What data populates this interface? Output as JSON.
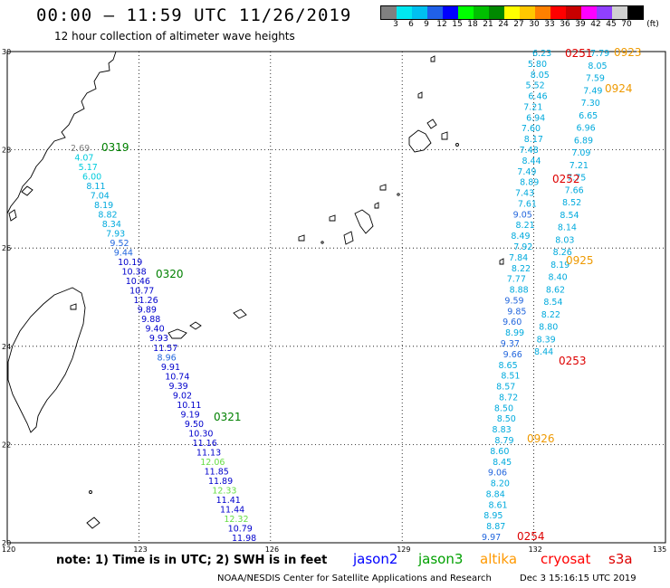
{
  "header": {
    "title": "00:00 – 11:59 UTC 11/26/2019",
    "subtitle": "12 hour collection of altimeter wave heights"
  },
  "color_scale": {
    "unit": "(ft)",
    "labels": [
      "3",
      "6",
      "9",
      "12",
      "15",
      "18",
      "21",
      "24",
      "27",
      "30",
      "33",
      "36",
      "39",
      "42",
      "45",
      "70"
    ],
    "colors": [
      "#808080",
      "#00e8f0",
      "#00c0f0",
      "#2060e8",
      "#0000ff",
      "#00ff00",
      "#00c000",
      "#008800",
      "#ffff00",
      "#ffc800",
      "#ff8000",
      "#ff0000",
      "#c80000",
      "#ff00ff",
      "#9040ff",
      "#d0d0d0",
      "#000000"
    ]
  },
  "map": {
    "lat_labels": [
      "30",
      "28",
      "26",
      "24",
      "22",
      "20"
    ],
    "lon_labels": [
      "120",
      "123",
      "126",
      "129",
      "132",
      "135"
    ]
  },
  "chart_data": {
    "type": "map",
    "tracks": [
      {
        "name": "jason3",
        "pass": "0319",
        "time_label": "0319",
        "label_color": "#008000",
        "points": [
          {
            "v": "2.69",
            "c": "#808080"
          },
          {
            "v": "4.07",
            "c": "#00ccdd"
          },
          {
            "v": "5.17",
            "c": "#00ccdd"
          },
          {
            "v": "6.00",
            "c": "#00ccdd"
          },
          {
            "v": "8.11",
            "c": "#00aadd"
          },
          {
            "v": "7.04",
            "c": "#00aadd"
          },
          {
            "v": "8.19",
            "c": "#00aadd"
          },
          {
            "v": "8.82",
            "c": "#00aadd"
          },
          {
            "v": "8.34",
            "c": "#00aadd"
          },
          {
            "v": "7.93",
            "c": "#00aadd"
          },
          {
            "v": "9.52",
            "c": "#2266dd"
          },
          {
            "v": "9.44",
            "c": "#2266dd"
          },
          {
            "v": "10.19",
            "c": "#0000cc"
          },
          {
            "v": "10.38",
            "c": "#0000cc"
          },
          {
            "v": "10.46",
            "c": "#0000cc"
          },
          {
            "v": "10.77",
            "c": "#0000cc"
          },
          {
            "v": "11.26",
            "c": "#0000cc"
          },
          {
            "v": "9.89",
            "c": "#0000cc"
          },
          {
            "v": "9.88",
            "c": "#0000cc"
          },
          {
            "v": "9.40",
            "c": "#0000cc"
          },
          {
            "v": "9.93",
            "c": "#0000cc"
          },
          {
            "v": "11.57",
            "c": "#0000cc"
          },
          {
            "v": "8.96",
            "c": "#2266dd"
          },
          {
            "v": "9.91",
            "c": "#0000cc"
          },
          {
            "v": "10.74",
            "c": "#0000cc"
          },
          {
            "v": "9.39",
            "c": "#0000cc"
          },
          {
            "v": "9.02",
            "c": "#0000cc"
          },
          {
            "v": "10.11",
            "c": "#0000cc"
          },
          {
            "v": "9.19",
            "c": "#0000cc"
          },
          {
            "v": "9.50",
            "c": "#0000cc"
          },
          {
            "v": "10.30",
            "c": "#0000cc"
          },
          {
            "v": "11.16",
            "c": "#0000cc"
          },
          {
            "v": "11.13",
            "c": "#0000cc"
          },
          {
            "v": "12.06",
            "c": "#66dd44"
          },
          {
            "v": "11.85",
            "c": "#0000cc"
          },
          {
            "v": "11.89",
            "c": "#0000cc"
          },
          {
            "v": "12.33",
            "c": "#66dd44"
          },
          {
            "v": "11.41",
            "c": "#0000cc"
          },
          {
            "v": "11.44",
            "c": "#0000cc"
          },
          {
            "v": "12.32",
            "c": "#66dd44"
          },
          {
            "v": "10.79",
            "c": "#0000cc"
          },
          {
            "v": "11.98",
            "c": "#0000cc"
          }
        ],
        "time_labels": [
          {
            "t": "0319"
          },
          {
            "t": "0320"
          },
          {
            "t": "0321"
          }
        ]
      },
      {
        "name": "altika",
        "pass": "0923",
        "points": [
          {
            "v": "6.23",
            "c": "#00aadd"
          },
          {
            "v": "5.80",
            "c": "#00aadd"
          },
          {
            "v": "8.05",
            "c": "#00aadd"
          },
          {
            "v": "5.52",
            "c": "#00aadd"
          },
          {
            "v": "6.46",
            "c": "#00aadd"
          },
          {
            "v": "7.21",
            "c": "#00aadd"
          },
          {
            "v": "6.94",
            "c": "#00aadd"
          },
          {
            "v": "7.60",
            "c": "#00aadd"
          },
          {
            "v": "8.17",
            "c": "#00aadd"
          },
          {
            "v": "7.48",
            "c": "#00aadd"
          },
          {
            "v": "8.44",
            "c": "#00aadd"
          },
          {
            "v": "7.49",
            "c": "#00aadd"
          },
          {
            "v": "8.89",
            "c": "#00aadd"
          },
          {
            "v": "7.43",
            "c": "#00aadd"
          },
          {
            "v": "7.61",
            "c": "#00aadd"
          },
          {
            "v": "9.05",
            "c": "#2266dd"
          },
          {
            "v": "8.21",
            "c": "#00aadd"
          },
          {
            "v": "8.49",
            "c": "#00aadd"
          },
          {
            "v": "7.92",
            "c": "#00aadd"
          },
          {
            "v": "7.84",
            "c": "#00aadd"
          },
          {
            "v": "8.22",
            "c": "#00aadd"
          },
          {
            "v": "7.77",
            "c": "#00aadd"
          },
          {
            "v": "8.88",
            "c": "#00aadd"
          },
          {
            "v": "9.59",
            "c": "#2266dd"
          },
          {
            "v": "9.85",
            "c": "#2266dd"
          },
          {
            "v": "9.60",
            "c": "#2266dd"
          },
          {
            "v": "8.99",
            "c": "#00aadd"
          },
          {
            "v": "9.37",
            "c": "#2266dd"
          },
          {
            "v": "9.66",
            "c": "#2266dd"
          },
          {
            "v": "8.65",
            "c": "#00aadd"
          },
          {
            "v": "8.51",
            "c": "#00aadd"
          },
          {
            "v": "8.57",
            "c": "#00aadd"
          },
          {
            "v": "8.72",
            "c": "#00aadd"
          },
          {
            "v": "8.50",
            "c": "#00aadd"
          },
          {
            "v": "8.50",
            "c": "#00aadd"
          },
          {
            "v": "8.83",
            "c": "#00aadd"
          },
          {
            "v": "8.79",
            "c": "#00aadd"
          },
          {
            "v": "8.60",
            "c": "#00aadd"
          },
          {
            "v": "8.45",
            "c": "#00aadd"
          },
          {
            "v": "9.06",
            "c": "#2266dd"
          },
          {
            "v": "8.20",
            "c": "#00aadd"
          },
          {
            "v": "8.84",
            "c": "#00aadd"
          },
          {
            "v": "8.61",
            "c": "#00aadd"
          },
          {
            "v": "8.95",
            "c": "#00aadd"
          },
          {
            "v": "8.87",
            "c": "#00aadd"
          },
          {
            "v": "9.97",
            "c": "#2266dd"
          }
        ]
      },
      {
        "name": "cryosat",
        "points": [
          {
            "v": "7.79",
            "c": "#00aadd"
          },
          {
            "v": "8.05",
            "c": "#00aadd"
          },
          {
            "v": "7.59",
            "c": "#00aadd"
          },
          {
            "v": "7.49",
            "c": "#00aadd"
          },
          {
            "v": "7.30",
            "c": "#00aadd"
          },
          {
            "v": "6.65",
            "c": "#00aadd"
          },
          {
            "v": "6.96",
            "c": "#00aadd"
          },
          {
            "v": "6.89",
            "c": "#00aadd"
          },
          {
            "v": "7.09",
            "c": "#00aadd"
          },
          {
            "v": "7.21",
            "c": "#00aadd"
          },
          {
            "v": "7.75",
            "c": "#00aadd"
          },
          {
            "v": "7.66",
            "c": "#00aadd"
          },
          {
            "v": "8.52",
            "c": "#00aadd"
          },
          {
            "v": "8.54",
            "c": "#00aadd"
          },
          {
            "v": "8.14",
            "c": "#00aadd"
          },
          {
            "v": "8.03",
            "c": "#00aadd"
          },
          {
            "v": "8.26",
            "c": "#00aadd"
          },
          {
            "v": "8.19",
            "c": "#00aadd"
          },
          {
            "v": "8.40",
            "c": "#00aadd"
          },
          {
            "v": "8.62",
            "c": "#00aadd"
          },
          {
            "v": "8.54",
            "c": "#00aadd"
          },
          {
            "v": "8.22",
            "c": "#00aadd"
          },
          {
            "v": "8.80",
            "c": "#00aadd"
          },
          {
            "v": "8.39",
            "c": "#00aadd"
          },
          {
            "v": "8.44",
            "c": "#00aadd"
          }
        ]
      },
      {
        "name": "pass_labels",
        "points": [
          {
            "t": "0320",
            "c": "#008000"
          },
          {
            "t": "0321",
            "c": "#008000"
          },
          {
            "t": "0251",
            "c": "#dd0000"
          },
          {
            "t": "0252",
            "c": "#dd0000"
          },
          {
            "t": "0253",
            "c": "#dd0000"
          },
          {
            "t": "0254",
            "c": "#dd0000"
          },
          {
            "t": "0923",
            "c": "#ee9900"
          },
          {
            "t": "0924",
            "c": "#ee9900"
          },
          {
            "t": "0925",
            "c": "#ee9900"
          },
          {
            "t": "0926",
            "c": "#ee9900"
          }
        ]
      }
    ]
  },
  "notes": {
    "text": "note: 1) Time is in UTC; 2) SWH is in feet"
  },
  "legend": {
    "items": [
      {
        "label": "jason2",
        "color": "#0000ff"
      },
      {
        "label": "jason3",
        "color": "#00a000"
      },
      {
        "label": "altika",
        "color": "#ff9900"
      },
      {
        "label": "cryosat",
        "color": "#ff0000"
      },
      {
        "label": "s3a",
        "color": "#dd0000"
      }
    ]
  },
  "footer": {
    "credit": "NOAA/NESDIS Center for Satellite Applications and Research",
    "timestamp": "Dec  3 15:16:15 UTC 2019"
  }
}
